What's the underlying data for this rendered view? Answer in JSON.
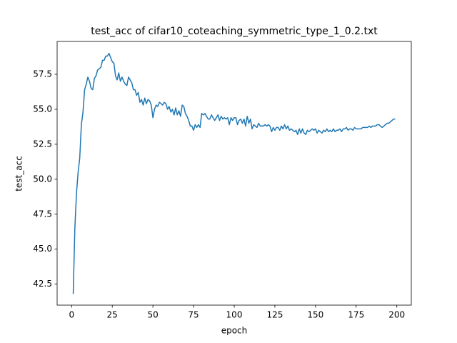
{
  "chart_data": {
    "type": "line",
    "title": "test_acc of cifar10_coteaching_symmetric_type_1_0.2.txt",
    "x_label": "epoch",
    "y_label": "test_acc",
    "x": [
      1,
      2,
      3,
      4,
      5,
      6,
      7,
      8,
      9,
      10,
      11,
      12,
      13,
      14,
      15,
      16,
      17,
      18,
      19,
      20,
      21,
      22,
      23,
      24,
      25,
      26,
      27,
      28,
      29,
      30,
      31,
      32,
      33,
      34,
      35,
      36,
      37,
      38,
      39,
      40,
      41,
      42,
      43,
      44,
      45,
      46,
      47,
      48,
      49,
      50,
      51,
      52,
      53,
      54,
      55,
      56,
      57,
      58,
      59,
      60,
      61,
      62,
      63,
      64,
      65,
      66,
      67,
      68,
      69,
      70,
      71,
      72,
      73,
      74,
      75,
      76,
      77,
      78,
      79,
      80,
      81,
      82,
      83,
      84,
      85,
      86,
      87,
      88,
      89,
      90,
      91,
      92,
      93,
      94,
      95,
      96,
      97,
      98,
      99,
      100,
      101,
      102,
      103,
      104,
      105,
      106,
      107,
      108,
      109,
      110,
      111,
      112,
      113,
      114,
      115,
      116,
      117,
      118,
      119,
      120,
      121,
      122,
      123,
      124,
      125,
      126,
      127,
      128,
      129,
      130,
      131,
      132,
      133,
      134,
      135,
      136,
      137,
      138,
      139,
      140,
      141,
      142,
      143,
      144,
      145,
      146,
      147,
      148,
      149,
      150,
      151,
      152,
      153,
      154,
      155,
      156,
      157,
      158,
      159,
      160,
      161,
      162,
      163,
      164,
      165,
      166,
      167,
      168,
      169,
      170,
      171,
      172,
      173,
      174,
      175,
      176,
      177,
      178,
      179,
      180,
      181,
      182,
      183,
      184,
      185,
      186,
      187,
      188,
      189,
      190,
      191,
      192,
      193,
      194,
      195,
      196,
      197,
      198,
      199
    ],
    "series": [
      {
        "name": "test_acc",
        "color": "#1f77b4",
        "values": [
          41.8,
          46.5,
          49.0,
          50.5,
          51.5,
          53.9,
          54.8,
          56.4,
          56.8,
          57.3,
          57.0,
          56.5,
          56.4,
          57.2,
          57.4,
          57.8,
          57.9,
          58.0,
          58.5,
          58.5,
          58.8,
          58.8,
          59.0,
          58.7,
          58.4,
          58.3,
          57.4,
          57.1,
          57.6,
          57.0,
          57.3,
          57.0,
          56.8,
          56.7,
          57.3,
          57.1,
          56.9,
          56.4,
          56.4,
          56.0,
          56.2,
          55.5,
          55.7,
          55.3,
          55.8,
          55.4,
          55.7,
          55.6,
          55.3,
          54.4,
          55.0,
          55.3,
          55.2,
          55.5,
          55.4,
          55.3,
          55.5,
          55.4,
          55.0,
          55.2,
          54.8,
          55.0,
          54.6,
          55.1,
          54.6,
          54.9,
          54.5,
          55.3,
          55.2,
          54.7,
          54.5,
          54.2,
          53.8,
          53.8,
          53.5,
          53.9,
          53.7,
          53.9,
          53.7,
          54.7,
          54.6,
          54.7,
          54.5,
          54.3,
          54.3,
          54.6,
          54.4,
          54.2,
          54.4,
          54.6,
          54.2,
          54.5,
          54.3,
          54.4,
          54.3,
          54.4,
          53.9,
          54.4,
          54.2,
          54.4,
          54.4,
          53.9,
          54.2,
          54.3,
          54.0,
          54.3,
          53.8,
          54.5,
          54.0,
          54.3,
          53.6,
          53.9,
          53.8,
          53.7,
          54.0,
          53.8,
          53.8,
          53.8,
          53.9,
          53.8,
          53.9,
          53.8,
          53.4,
          53.7,
          53.5,
          53.7,
          53.7,
          53.5,
          53.8,
          53.6,
          53.9,
          53.6,
          53.8,
          53.5,
          53.6,
          53.5,
          53.4,
          53.5,
          53.2,
          53.6,
          53.3,
          53.6,
          53.3,
          53.2,
          53.5,
          53.4,
          53.5,
          53.6,
          53.5,
          53.6,
          53.3,
          53.5,
          53.4,
          53.3,
          53.5,
          53.4,
          53.6,
          53.4,
          53.5,
          53.4,
          53.6,
          53.4,
          53.5,
          53.5,
          53.6,
          53.4,
          53.6,
          53.6,
          53.7,
          53.5,
          53.6,
          53.6,
          53.5,
          53.7,
          53.6,
          53.6,
          53.6,
          53.6,
          53.7,
          53.7,
          53.7,
          53.7,
          53.8,
          53.7,
          53.8,
          53.8,
          53.8,
          53.9,
          53.9,
          53.8,
          53.7,
          53.8,
          53.9,
          54.0,
          54.0,
          54.1,
          54.2,
          54.3,
          54.3
        ]
      }
    ],
    "xlim": [
      -8.9,
      208.9
    ],
    "xticks": [
      0,
      25,
      50,
      75,
      100,
      125,
      150,
      175,
      200
    ],
    "ylim": [
      41.0,
      59.85
    ],
    "yticks": [
      42.5,
      {
        "value": 45,
        "label": "45.0"
      },
      47.5,
      {
        "value": 50,
        "label": "50.0"
      },
      52.5,
      {
        "value": 55,
        "label": "55.0"
      },
      57.5
    ],
    "grid": false
  }
}
